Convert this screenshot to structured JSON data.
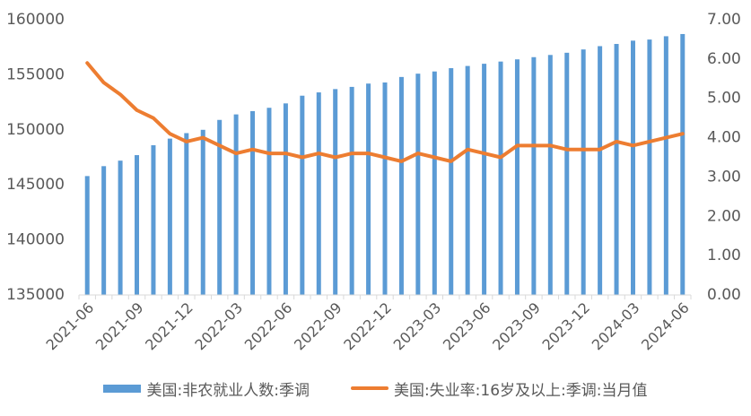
{
  "chart_data": {
    "type": "bar+line",
    "x": [
      "2021-06",
      "2021-07",
      "2021-08",
      "2021-09",
      "2021-10",
      "2021-11",
      "2021-12",
      "2022-01",
      "2022-02",
      "2022-03",
      "2022-04",
      "2022-05",
      "2022-06",
      "2022-07",
      "2022-08",
      "2022-09",
      "2022-10",
      "2022-11",
      "2022-12",
      "2023-01",
      "2023-02",
      "2023-03",
      "2023-04",
      "2023-05",
      "2023-06",
      "2023-07",
      "2023-08",
      "2023-09",
      "2023-10",
      "2023-11",
      "2023-12",
      "2024-01",
      "2024-02",
      "2024-03",
      "2024-04",
      "2024-05",
      "2024-06"
    ],
    "x_tick_labels": [
      "2021-06",
      "2021-09",
      "2021-12",
      "2022-03",
      "2022-06",
      "2022-09",
      "2022-12",
      "2023-03",
      "2023-06",
      "2023-09",
      "2023-12",
      "2024-03",
      "2024-06"
    ],
    "series": [
      {
        "name": "美国:非农就业人数:季调",
        "type": "bar",
        "axis": "left",
        "color": "#5B9BD5",
        "values": [
          145800,
          146700,
          147200,
          147700,
          148600,
          149200,
          149700,
          150000,
          150900,
          151400,
          151700,
          152000,
          152400,
          153100,
          153400,
          153700,
          153900,
          154200,
          154300,
          154800,
          155100,
          155300,
          155600,
          155800,
          156000,
          156200,
          156400,
          156600,
          156800,
          157000,
          157300,
          157600,
          157800,
          158100,
          158200,
          158500,
          158700
        ]
      },
      {
        "name": "美国:失业率:16岁及以上:季调:当月值",
        "type": "line",
        "axis": "right",
        "color": "#ED7D31",
        "values": [
          5.9,
          5.4,
          5.1,
          4.7,
          4.5,
          4.1,
          3.9,
          4.0,
          3.8,
          3.6,
          3.7,
          3.6,
          3.6,
          3.5,
          3.6,
          3.5,
          3.6,
          3.6,
          3.5,
          3.4,
          3.6,
          3.5,
          3.4,
          3.7,
          3.6,
          3.5,
          3.8,
          3.8,
          3.8,
          3.7,
          3.7,
          3.7,
          3.9,
          3.8,
          3.9,
          4.0,
          4.1
        ]
      }
    ],
    "y_left": {
      "min": 135000,
      "max": 160000,
      "ticks": [
        "135000",
        "140000",
        "145000",
        "150000",
        "155000",
        "160000"
      ]
    },
    "y_right": {
      "min": 0,
      "max": 7,
      "ticks": [
        "0.00",
        "1.00",
        "2.00",
        "3.00",
        "4.00",
        "5.00",
        "6.00",
        "7.00"
      ]
    },
    "legend_position": "bottom",
    "grid": false
  }
}
